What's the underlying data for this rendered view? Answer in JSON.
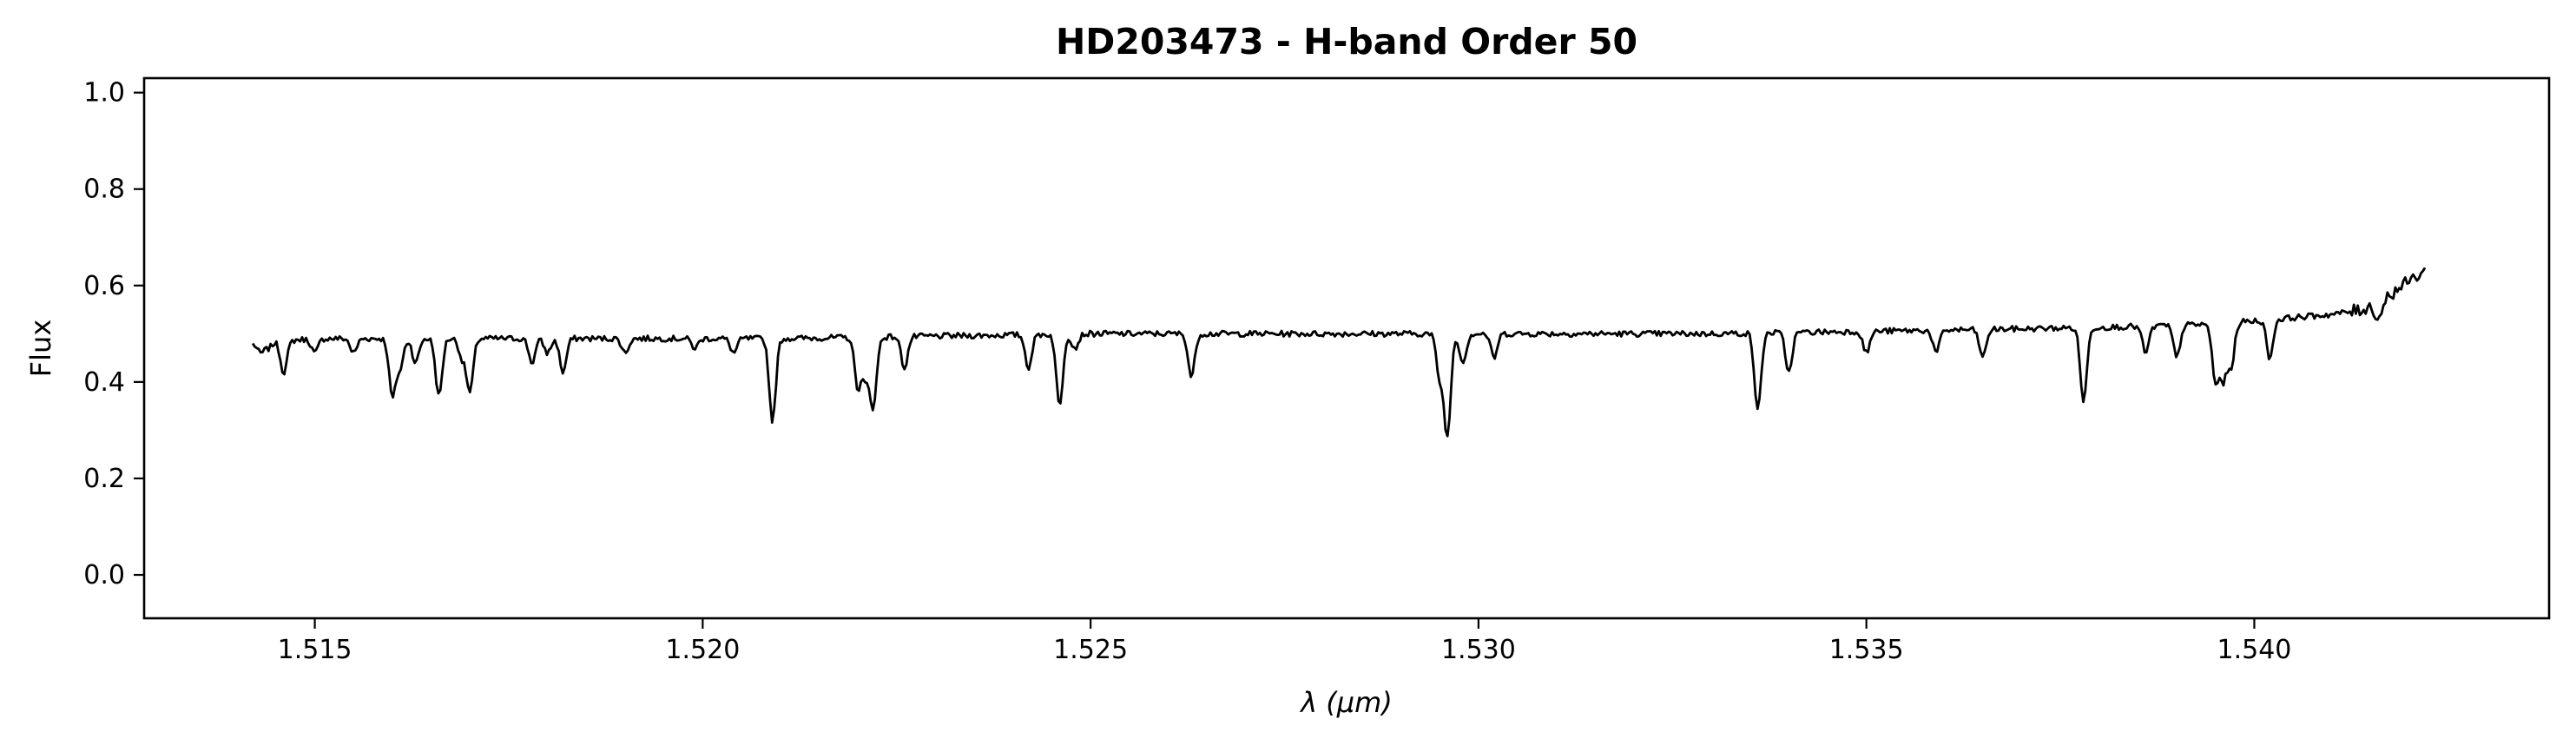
{
  "chart_data": {
    "type": "line",
    "title": "HD203473 - H-band Order 50",
    "xlabel": "λ (μm)",
    "ylabel": "Flux",
    "xlim": [
      1.5128,
      1.5438
    ],
    "ylim": [
      -0.09,
      1.03
    ],
    "xticks": [
      1.515,
      1.52,
      1.525,
      1.53,
      1.535,
      1.54
    ],
    "xtick_labels": [
      "1.515",
      "1.520",
      "1.525",
      "1.530",
      "1.535",
      "1.540"
    ],
    "yticks": [
      0.0,
      0.2,
      0.4,
      0.6,
      0.8,
      1.0
    ],
    "ytick_labels": [
      "0.0",
      "0.2",
      "0.4",
      "0.6",
      "0.8",
      "1.0"
    ],
    "grid": false,
    "legend": "none",
    "line_color": "#000000",
    "series": [
      {
        "x_start": 1.5142,
        "x_end": 1.5422,
        "continuum": [
          [
            1.5142,
            0.48
          ],
          [
            1.515,
            0.49
          ],
          [
            1.517,
            0.49
          ],
          [
            1.519,
            0.49
          ],
          [
            1.521,
            0.49
          ],
          [
            1.523,
            0.495
          ],
          [
            1.525,
            0.5
          ],
          [
            1.527,
            0.5
          ],
          [
            1.529,
            0.5
          ],
          [
            1.531,
            0.5
          ],
          [
            1.533,
            0.5
          ],
          [
            1.535,
            0.505
          ],
          [
            1.537,
            0.51
          ],
          [
            1.5385,
            0.515
          ],
          [
            1.5395,
            0.52
          ],
          [
            1.541,
            0.54
          ],
          [
            1.5414,
            0.55
          ],
          [
            1.5417,
            0.575
          ],
          [
            1.542,
            0.61
          ],
          [
            1.5422,
            0.63
          ]
        ],
        "absorption_lines": [
          [
            1.5143,
            0.46
          ],
          [
            1.5144,
            0.47
          ],
          [
            1.5146,
            0.42
          ],
          [
            1.515,
            0.46
          ],
          [
            1.5155,
            0.46
          ],
          [
            1.516,
            0.37
          ],
          [
            1.5161,
            0.43
          ],
          [
            1.5163,
            0.44
          ],
          [
            1.5166,
            0.37
          ],
          [
            1.5169,
            0.45
          ],
          [
            1.517,
            0.38
          ],
          [
            1.5178,
            0.44
          ],
          [
            1.518,
            0.46
          ],
          [
            1.5182,
            0.42
          ],
          [
            1.519,
            0.46
          ],
          [
            1.5199,
            0.47
          ],
          [
            1.5204,
            0.46
          ],
          [
            1.5209,
            0.32
          ],
          [
            1.522,
            0.39
          ],
          [
            1.5221,
            0.41
          ],
          [
            1.5222,
            0.35
          ],
          [
            1.5226,
            0.43
          ],
          [
            1.5242,
            0.43
          ],
          [
            1.5246,
            0.35
          ],
          [
            1.5248,
            0.47
          ],
          [
            1.5263,
            0.41
          ],
          [
            1.5295,
            0.41
          ],
          [
            1.5296,
            0.29
          ],
          [
            1.5298,
            0.44
          ],
          [
            1.5302,
            0.45
          ],
          [
            1.5336,
            0.34
          ],
          [
            1.534,
            0.42
          ],
          [
            1.535,
            0.46
          ],
          [
            1.5359,
            0.46
          ],
          [
            1.5365,
            0.45
          ],
          [
            1.5378,
            0.36
          ],
          [
            1.5386,
            0.46
          ],
          [
            1.539,
            0.45
          ],
          [
            1.5395,
            0.4
          ],
          [
            1.5396,
            0.41
          ],
          [
            1.5397,
            0.43
          ],
          [
            1.5402,
            0.45
          ],
          [
            1.5416,
            0.53
          ]
        ],
        "noise_amplitude": 0.006
      }
    ]
  }
}
